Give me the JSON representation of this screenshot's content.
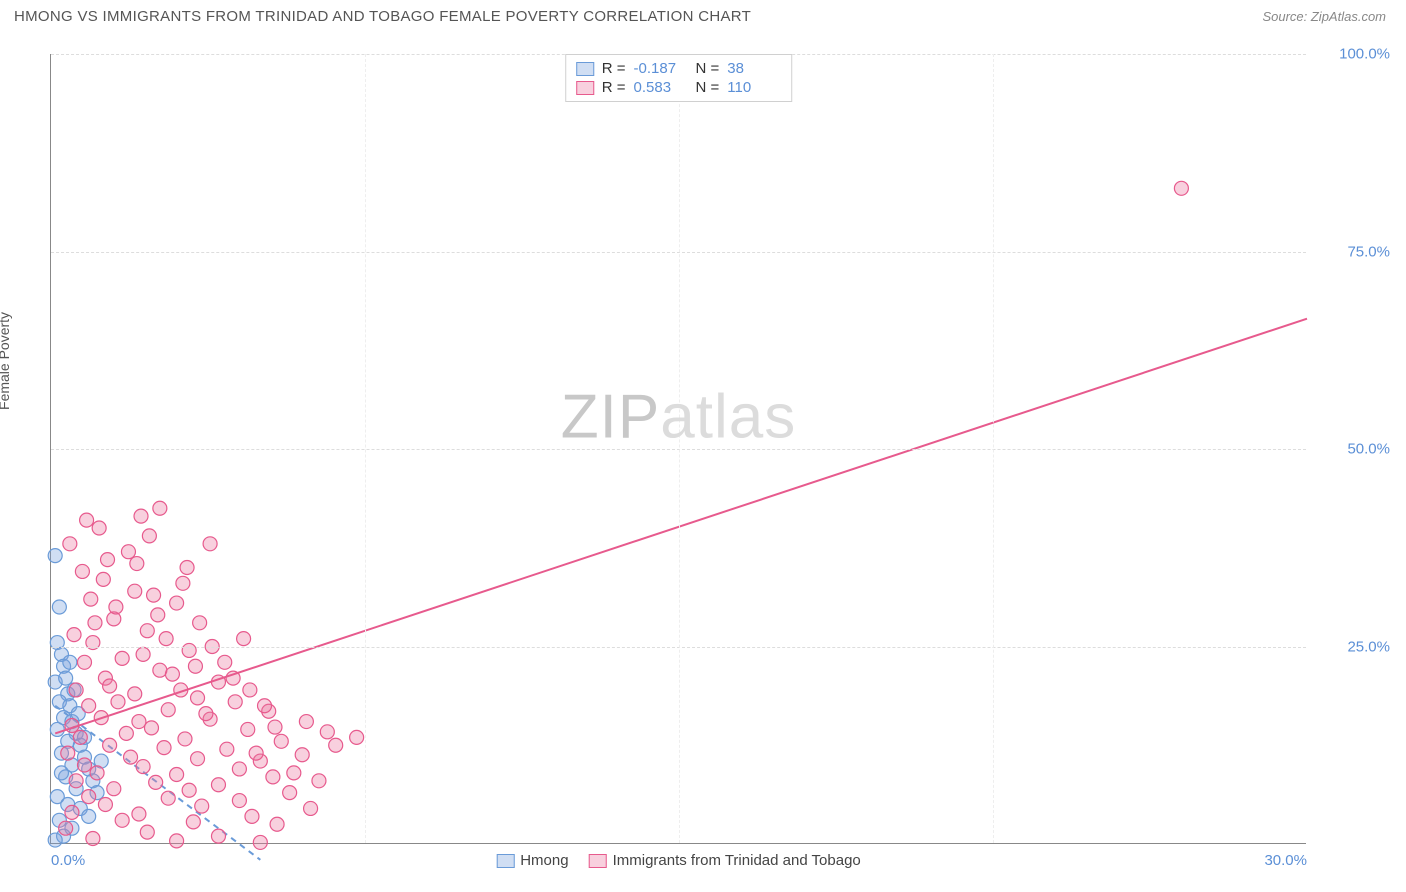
{
  "header": {
    "title": "HMONG VS IMMIGRANTS FROM TRINIDAD AND TOBAGO FEMALE POVERTY CORRELATION CHART",
    "source": "Source: ZipAtlas.com"
  },
  "y_axis": {
    "label": "Female Poverty"
  },
  "watermark": {
    "part1": "ZIP",
    "part2": "atlas"
  },
  "chart": {
    "type": "scatter",
    "xlim": [
      0,
      30
    ],
    "ylim": [
      0,
      100
    ],
    "x_ticks": [
      0,
      30
    ],
    "x_tick_labels": [
      "0.0%",
      "30.0%"
    ],
    "y_ticks": [
      25,
      50,
      75,
      100
    ],
    "y_tick_labels": [
      "25.0%",
      "50.0%",
      "75.0%",
      "100.0%"
    ],
    "x_grid_positions": [
      7.5,
      15,
      22.5
    ],
    "background_color": "#ffffff",
    "grid_color": "#dddddd",
    "axis_color": "#888888",
    "tick_label_color": "#5b8fd6",
    "marker_radius": 7,
    "marker_stroke_width": 1.2,
    "line_width": 2,
    "series": [
      {
        "name": "Hmong",
        "fill": "rgba(120,160,220,0.35)",
        "stroke": "#6a9bd8",
        "R": "-0.187",
        "N": "38",
        "regression": {
          "x1": 0.1,
          "y1": 17.5,
          "x2": 5.0,
          "y2": -2.0,
          "dash": "6 5"
        },
        "points": [
          [
            0.1,
            36.5
          ],
          [
            0.2,
            30.0
          ],
          [
            0.15,
            25.5
          ],
          [
            0.25,
            24.0
          ],
          [
            0.3,
            22.5
          ],
          [
            0.1,
            20.5
          ],
          [
            0.35,
            21.0
          ],
          [
            0.4,
            19.0
          ],
          [
            0.2,
            18.0
          ],
          [
            0.45,
            17.5
          ],
          [
            0.3,
            16.0
          ],
          [
            0.5,
            15.5
          ],
          [
            0.15,
            14.5
          ],
          [
            0.6,
            14.0
          ],
          [
            0.4,
            13.0
          ],
          [
            0.7,
            12.5
          ],
          [
            0.25,
            11.5
          ],
          [
            0.8,
            11.0
          ],
          [
            0.5,
            10.0
          ],
          [
            0.9,
            9.5
          ],
          [
            0.35,
            8.5
          ],
          [
            1.0,
            8.0
          ],
          [
            0.6,
            7.0
          ],
          [
            0.15,
            6.0
          ],
          [
            0.4,
            5.0
          ],
          [
            0.7,
            4.5
          ],
          [
            0.2,
            3.0
          ],
          [
            0.9,
            3.5
          ],
          [
            0.5,
            2.0
          ],
          [
            0.3,
            1.0
          ],
          [
            0.1,
            0.5
          ],
          [
            1.1,
            6.5
          ],
          [
            1.2,
            10.5
          ],
          [
            0.8,
            13.5
          ],
          [
            0.55,
            19.5
          ],
          [
            0.45,
            23.0
          ],
          [
            0.65,
            16.5
          ],
          [
            0.25,
            9.0
          ]
        ]
      },
      {
        "name": "Immigrants from Trinidad and Tobago",
        "fill": "rgba(235,120,160,0.35)",
        "stroke": "#e75a8d",
        "R": "0.583",
        "N": "110",
        "regression": {
          "x1": 0.1,
          "y1": 14.0,
          "x2": 30.0,
          "y2": 66.5,
          "dash": null
        },
        "points": [
          [
            27.0,
            83.0
          ],
          [
            2.6,
            42.5
          ],
          [
            3.8,
            38.0
          ],
          [
            2.0,
            32.0
          ],
          [
            3.0,
            30.5
          ],
          [
            1.5,
            28.5
          ],
          [
            2.3,
            27.0
          ],
          [
            1.0,
            25.5
          ],
          [
            3.3,
            24.5
          ],
          [
            0.8,
            23.0
          ],
          [
            2.6,
            22.0
          ],
          [
            1.3,
            21.0
          ],
          [
            4.0,
            20.5
          ],
          [
            0.6,
            19.5
          ],
          [
            2.0,
            19.0
          ],
          [
            3.5,
            18.5
          ],
          [
            1.6,
            18.0
          ],
          [
            0.9,
            17.5
          ],
          [
            2.8,
            17.0
          ],
          [
            5.2,
            16.8
          ],
          [
            1.2,
            16.0
          ],
          [
            3.8,
            15.8
          ],
          [
            0.5,
            15.0
          ],
          [
            2.4,
            14.7
          ],
          [
            4.7,
            14.5
          ],
          [
            6.6,
            14.2
          ],
          [
            1.8,
            14.0
          ],
          [
            0.7,
            13.5
          ],
          [
            3.2,
            13.3
          ],
          [
            5.5,
            13.0
          ],
          [
            7.3,
            13.5
          ],
          [
            1.4,
            12.5
          ],
          [
            2.7,
            12.2
          ],
          [
            4.2,
            12.0
          ],
          [
            0.4,
            11.5
          ],
          [
            6.0,
            11.3
          ],
          [
            1.9,
            11.0
          ],
          [
            3.5,
            10.8
          ],
          [
            5.0,
            10.5
          ],
          [
            0.8,
            10.0
          ],
          [
            2.2,
            9.8
          ],
          [
            4.5,
            9.5
          ],
          [
            6.8,
            12.5
          ],
          [
            1.1,
            9.0
          ],
          [
            3.0,
            8.8
          ],
          [
            5.3,
            8.5
          ],
          [
            0.6,
            8.0
          ],
          [
            2.5,
            7.8
          ],
          [
            4.0,
            7.5
          ],
          [
            1.5,
            7.0
          ],
          [
            3.3,
            6.8
          ],
          [
            5.7,
            6.5
          ],
          [
            0.9,
            6.0
          ],
          [
            2.8,
            5.8
          ],
          [
            4.5,
            5.5
          ],
          [
            1.3,
            5.0
          ],
          [
            3.6,
            4.8
          ],
          [
            6.2,
            4.5
          ],
          [
            0.5,
            4.0
          ],
          [
            2.1,
            3.8
          ],
          [
            4.8,
            3.5
          ],
          [
            1.7,
            3.0
          ],
          [
            3.4,
            2.8
          ],
          [
            5.4,
            2.5
          ],
          [
            0.35,
            2.0
          ],
          [
            2.3,
            1.5
          ],
          [
            4.0,
            1.0
          ],
          [
            1.0,
            0.7
          ],
          [
            3.0,
            0.4
          ],
          [
            5.0,
            0.2
          ],
          [
            1.4,
            20.0
          ],
          [
            2.1,
            15.5
          ],
          [
            3.7,
            16.5
          ],
          [
            4.4,
            18.0
          ],
          [
            5.8,
            9.0
          ],
          [
            2.9,
            21.5
          ],
          [
            1.7,
            23.5
          ],
          [
            0.55,
            26.5
          ],
          [
            3.1,
            19.5
          ],
          [
            4.9,
            11.5
          ],
          [
            2.2,
            24.0
          ],
          [
            1.05,
            28.0
          ],
          [
            3.45,
            22.5
          ],
          [
            0.95,
            31.0
          ],
          [
            2.55,
            29.0
          ],
          [
            1.25,
            33.5
          ],
          [
            4.15,
            23.0
          ],
          [
            5.35,
            14.8
          ],
          [
            6.4,
            8.0
          ],
          [
            2.75,
            26.0
          ],
          [
            1.55,
            30.0
          ],
          [
            3.85,
            25.0
          ],
          [
            0.75,
            34.5
          ],
          [
            2.05,
            35.5
          ],
          [
            4.35,
            21.0
          ],
          [
            1.85,
            37.0
          ],
          [
            3.15,
            33.0
          ],
          [
            5.1,
            17.5
          ],
          [
            0.45,
            38.0
          ],
          [
            2.35,
            39.0
          ],
          [
            1.15,
            40.0
          ],
          [
            3.55,
            28.0
          ],
          [
            4.6,
            26.0
          ],
          [
            6.1,
            15.5
          ],
          [
            2.45,
            31.5
          ],
          [
            1.35,
            36.0
          ],
          [
            3.25,
            35.0
          ],
          [
            0.85,
            41.0
          ],
          [
            4.75,
            19.5
          ],
          [
            2.15,
            41.5
          ]
        ]
      }
    ]
  },
  "legend_top": {
    "rows": [
      {
        "swatch_fill": "rgba(120,160,220,0.35)",
        "swatch_stroke": "#6a9bd8",
        "r_label": "R =",
        "r_val": "-0.187",
        "n_label": "N =",
        "n_val": "38"
      },
      {
        "swatch_fill": "rgba(235,120,160,0.35)",
        "swatch_stroke": "#e75a8d",
        "r_label": "R =",
        "r_val": "0.583",
        "n_label": "N =",
        "n_val": "110"
      }
    ]
  },
  "legend_bottom": {
    "items": [
      {
        "swatch_fill": "rgba(120,160,220,0.35)",
        "swatch_stroke": "#6a9bd8",
        "label": "Hmong"
      },
      {
        "swatch_fill": "rgba(235,120,160,0.35)",
        "swatch_stroke": "#e75a8d",
        "label": "Immigrants from Trinidad and Tobago"
      }
    ]
  }
}
